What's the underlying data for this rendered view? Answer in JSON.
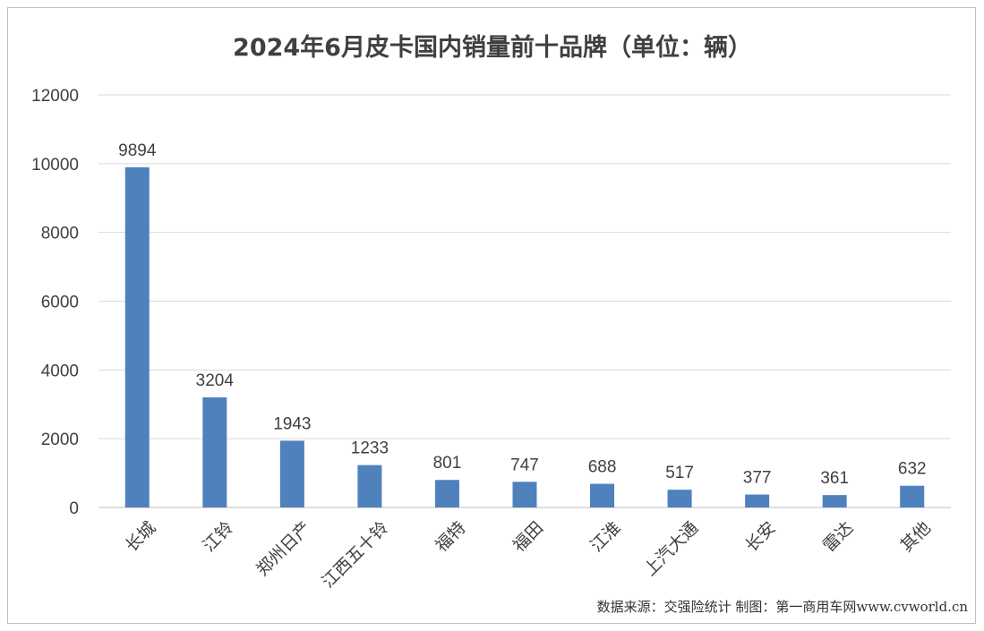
{
  "chart_data": {
    "type": "bar",
    "title": "2024年6月皮卡国内销量前十品牌（单位：辆）",
    "categories": [
      "长城",
      "江铃",
      "郑州日产",
      "江西五十铃",
      "福特",
      "福田",
      "江淮",
      "上汽大通",
      "长安",
      "雷达",
      "其他"
    ],
    "values": [
      9894,
      3204,
      1943,
      1233,
      801,
      747,
      688,
      517,
      377,
      361,
      632
    ],
    "data_labels": [
      "9894",
      "3204",
      "1943",
      "1233",
      "801",
      "747",
      "688",
      "517",
      "377",
      "361",
      "632"
    ],
    "ylim": [
      0,
      12000
    ],
    "yticks": [
      "0",
      "2000",
      "4000",
      "6000",
      "8000",
      "10000",
      "12000"
    ],
    "ytick_values": [
      0,
      2000,
      4000,
      6000,
      8000,
      10000,
      12000
    ],
    "grid": true,
    "bar_color": "#4f81bd",
    "xlabel": "",
    "ylabel": ""
  },
  "source_note": "数据来源：交强险统计 制图：第一商用车网www.cvworld.cn"
}
